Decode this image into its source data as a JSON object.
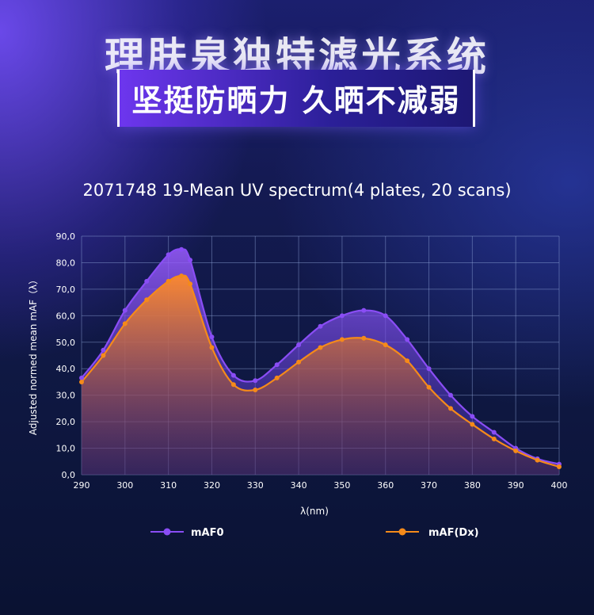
{
  "header": {
    "headline": "理肤泉独特滤光系统",
    "subheadline": "坚挺防晒力 久晒不减弱"
  },
  "colors": {
    "series_0": "#8a4df5",
    "series_1": "#f58a1a",
    "grid": "#8fa3d6"
  },
  "chart_data": {
    "type": "area",
    "title": "2071748 19-Mean UV spectrum(4 plates, 20 scans)",
    "xlabel": "λ(nm)",
    "ylabel": "Adjusted normed mean mAF（λ）",
    "xlim": [
      290,
      400
    ],
    "ylim": [
      0,
      90
    ],
    "x_ticks": [
      290,
      300,
      310,
      320,
      330,
      340,
      350,
      360,
      370,
      380,
      390,
      400
    ],
    "y_ticks": [
      "0,0",
      "10,0",
      "20,0",
      "30,0",
      "40,0",
      "50,0",
      "60,0",
      "70,0",
      "80,0",
      "90,0"
    ],
    "grid": true,
    "legend_position": "bottom",
    "x": [
      290,
      295,
      300,
      305,
      310,
      313,
      315,
      320,
      325,
      330,
      335,
      340,
      345,
      350,
      355,
      360,
      365,
      370,
      375,
      380,
      385,
      390,
      395,
      400
    ],
    "series": [
      {
        "name": "mAF0",
        "values": [
          36.5,
          47,
          62,
          73,
          83,
          85,
          81,
          52,
          37.5,
          35.5,
          41.5,
          49,
          56,
          60,
          62,
          60,
          51,
          40,
          30,
          22,
          16,
          10,
          6,
          4
        ]
      },
      {
        "name": "mAF(Dx)",
        "values": [
          35,
          45,
          57,
          66,
          73,
          75,
          72,
          48,
          34,
          32,
          36.5,
          42.5,
          48,
          51,
          51.5,
          49,
          43,
          33,
          25,
          19,
          13.5,
          9,
          5.5,
          3
        ]
      }
    ]
  }
}
